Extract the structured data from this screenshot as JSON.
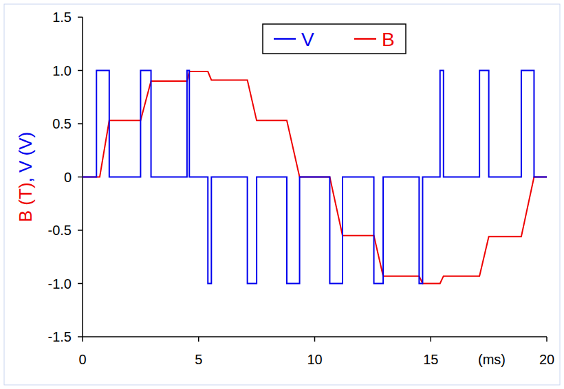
{
  "chart_data": {
    "type": "line",
    "xlabel": "(ms)",
    "ylabel": [
      "B (T)",
      ", V (V)"
    ],
    "xlim": [
      0,
      20
    ],
    "xticks": [
      0,
      5,
      10,
      15,
      20
    ],
    "ylim": [
      -1.5,
      1.5
    ],
    "yticks": [
      -1.5,
      {
        "value": -1,
        "label": "-1.0"
      },
      -0.5,
      0,
      0.5,
      {
        "value": 1,
        "label": "1.0"
      },
      1.5
    ],
    "legend": "upper center",
    "grid": false,
    "series": [
      {
        "name": "V",
        "color": "#0000ee",
        "x": [
          0,
          0.6,
          0.6,
          1.15,
          1.15,
          2.5,
          2.5,
          2.95,
          2.95,
          4.5,
          4.5,
          4.6,
          4.6,
          5.4,
          5.4,
          5.55,
          5.55,
          7.1,
          7.1,
          7.5,
          7.5,
          8.8,
          8.8,
          9.35,
          9.35,
          10.65,
          10.65,
          11.2,
          11.2,
          12.55,
          12.55,
          12.95,
          12.95,
          14.5,
          14.5,
          14.65,
          14.65,
          15.4,
          15.4,
          15.55,
          15.55,
          17.1,
          17.1,
          17.5,
          17.5,
          18.9,
          18.9,
          19.45,
          19.45,
          20
        ],
        "values": [
          0,
          0,
          1,
          1,
          0,
          0,
          1,
          1,
          0,
          0,
          1,
          1,
          0,
          0,
          -1,
          -1,
          0,
          0,
          -1,
          -1,
          0,
          0,
          -1,
          -1,
          0,
          0,
          -1,
          -1,
          0,
          0,
          -1,
          -1,
          0,
          0,
          -1,
          -1,
          0,
          0,
          1,
          1,
          0,
          0,
          1,
          1,
          0,
          0,
          1,
          1,
          0,
          0
        ]
      },
      {
        "name": "B",
        "color": "#ee0000",
        "x": [
          0,
          0.74,
          1.15,
          2.5,
          2.95,
          4.5,
          4.6,
          5.4,
          5.55,
          7.1,
          7.5,
          8.8,
          9.35,
          10.65,
          11.2,
          12.55,
          12.95,
          14.5,
          14.65,
          15.4,
          15.55,
          17.1,
          17.5,
          18.9,
          19.45,
          20
        ],
        "values": [
          0,
          0,
          0.53,
          0.53,
          0.9,
          0.9,
          0.99,
          0.99,
          0.91,
          0.91,
          0.53,
          0.53,
          0,
          0,
          -0.55,
          -0.55,
          -0.93,
          -0.93,
          -1.0,
          -1.0,
          -0.93,
          -0.93,
          -0.56,
          -0.56,
          0,
          0
        ]
      }
    ]
  }
}
